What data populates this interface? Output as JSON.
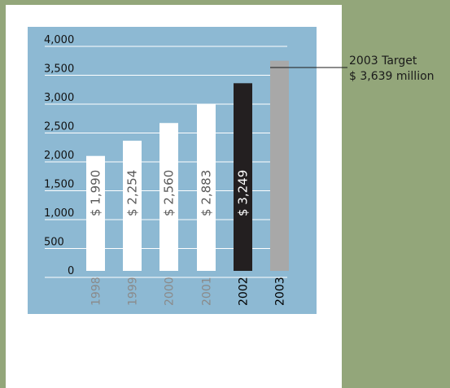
{
  "chart_data": {
    "type": "bar",
    "title": "",
    "xlabel": "",
    "ylabel": "",
    "ylim": [
      0,
      4000
    ],
    "y_ticks": [
      "4,000",
      "3,500",
      "3,000",
      "2,500",
      "2,000",
      "1,500",
      "1,000",
      "500",
      "0"
    ],
    "y_tick_values": [
      4000,
      3500,
      3000,
      2500,
      2000,
      1500,
      1000,
      500,
      0
    ],
    "categories": [
      "1998",
      "1999",
      "2000",
      "2001",
      "2002",
      "2003"
    ],
    "values": [
      1990,
      2254,
      2560,
      2883,
      3249,
      3639
    ],
    "bar_labels": [
      "$ 1,990",
      "$ 2,254",
      "$ 2,560",
      "$ 2,883",
      "$ 3,249",
      ""
    ],
    "bar_colors": [
      "#ffffff",
      "#ffffff",
      "#ffffff",
      "#ffffff",
      "#231f20",
      "#a8a8a8"
    ],
    "bar_label_colors": [
      "#5a5a5a",
      "#5a5a5a",
      "#5a5a5a",
      "#5a5a5a",
      "#ffffff",
      "#5a5a5a"
    ],
    "year_colors": [
      "#8a8a8a",
      "#8a8a8a",
      "#8a8a8a",
      "#8a8a8a",
      "#000000",
      "#000000"
    ],
    "grid": true,
    "plot_background": "#8db9d3",
    "annotation": {
      "line1": "2003 Target",
      "line2": "$ 3,639 million"
    }
  }
}
